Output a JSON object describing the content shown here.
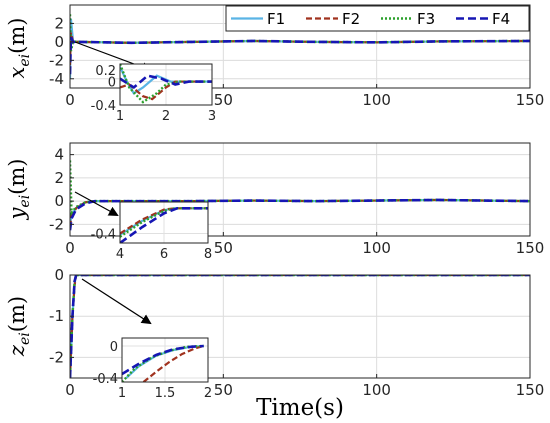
{
  "chart_data": [
    {
      "type": "line",
      "ylabel": "x_ei(m)",
      "xlabel": "",
      "xlim": [
        0,
        150
      ],
      "ylim": [
        -5,
        4
      ],
      "xticks": [
        0,
        50,
        100,
        150
      ],
      "yticks": [
        -4,
        -2,
        0,
        2
      ],
      "grid": true,
      "legend_position": "top-right",
      "legend": [
        "F1",
        "F2",
        "F3",
        "F4"
      ],
      "series": [
        {
          "name": "F1",
          "color": "#5ab4e5",
          "dash": "solid",
          "x": [
            0,
            0.3,
            1,
            3,
            20,
            40,
            60,
            80,
            100,
            120,
            150
          ],
          "y": [
            -4.0,
            2.5,
            0.05,
            0.0,
            -0.1,
            0.0,
            0.1,
            0.0,
            -0.05,
            0.05,
            0.1
          ]
        },
        {
          "name": "F2",
          "color": "#a0321e",
          "dash": "6,3",
          "x": [
            0,
            0.3,
            1,
            3,
            20,
            40,
            60,
            80,
            100,
            120,
            150
          ],
          "y": [
            -2.5,
            1.0,
            0.0,
            0.0,
            -0.1,
            0.0,
            0.1,
            0.0,
            -0.05,
            0.05,
            0.1
          ]
        },
        {
          "name": "F3",
          "color": "#2ca02c",
          "dash": "2,2",
          "x": [
            0,
            0.3,
            1,
            3,
            20,
            40,
            60,
            80,
            100,
            120,
            150
          ],
          "y": [
            3.0,
            -1.0,
            0.05,
            0.0,
            -0.1,
            0.0,
            0.1,
            0.0,
            -0.05,
            0.05,
            0.1
          ]
        },
        {
          "name": "F4",
          "color": "#1616b4",
          "dash": "8,4",
          "x": [
            0,
            0.3,
            1,
            3,
            20,
            40,
            60,
            80,
            100,
            120,
            150
          ],
          "y": [
            -3.5,
            0.5,
            0.0,
            0.0,
            -0.1,
            0.0,
            0.1,
            0.0,
            -0.05,
            0.05,
            0.1
          ]
        }
      ],
      "inset": {
        "xlim": [
          1,
          3
        ],
        "ylim": [
          -0.4,
          0.3
        ],
        "xticks": [
          1,
          2,
          3
        ],
        "yticks": [
          -0.4,
          0,
          0.2
        ],
        "yticklabels": [
          "-0.4",
          "0",
          "0.2"
        ],
        "series": [
          {
            "name": "F1",
            "x": [
              1.0,
              1.15,
              1.3,
              1.5,
              1.8,
              2.1,
              2.5,
              3.0
            ],
            "y": [
              0.25,
              0.0,
              -0.2,
              -0.1,
              0.1,
              0.0,
              0.0,
              0.0
            ]
          },
          {
            "name": "F2",
            "x": [
              1.0,
              1.2,
              1.5,
              1.7,
              2.0,
              2.2,
              2.5,
              3.0
            ],
            "y": [
              -0.1,
              -0.05,
              -0.25,
              -0.3,
              -0.1,
              0.0,
              0.0,
              0.0
            ]
          },
          {
            "name": "F3",
            "x": [
              1.0,
              1.2,
              1.5,
              1.8,
              2.0,
              2.3,
              2.6,
              3.0
            ],
            "y": [
              0.3,
              -0.1,
              -0.35,
              -0.2,
              -0.05,
              0.0,
              0.0,
              0.0
            ]
          },
          {
            "name": "F4",
            "x": [
              1.0,
              1.3,
              1.6,
              1.9,
              2.2,
              2.5,
              3.0
            ],
            "y": [
              0.05,
              -0.1,
              0.1,
              0.05,
              -0.05,
              0.0,
              0.0
            ]
          }
        ]
      }
    },
    {
      "type": "line",
      "ylabel": "y_ei(m)",
      "xlabel": "",
      "xlim": [
        0,
        150
      ],
      "ylim": [
        -3,
        5
      ],
      "xticks": [
        0,
        50,
        100,
        150
      ],
      "yticks": [
        -2,
        0,
        2,
        4
      ],
      "grid": true,
      "series": [
        {
          "name": "F1",
          "x": [
            0,
            0.5,
            2,
            5,
            8,
            20,
            40,
            60,
            80,
            100,
            120,
            150
          ],
          "y": [
            -2.0,
            -1.2,
            -0.6,
            -0.1,
            0.0,
            0.0,
            0.0,
            0.05,
            0.0,
            0.05,
            0.1,
            0.0
          ]
        },
        {
          "name": "F2",
          "x": [
            0,
            0.5,
            2,
            5,
            8,
            20,
            40,
            60,
            80,
            100,
            120,
            150
          ],
          "y": [
            -2.2,
            -1.3,
            -0.6,
            -0.1,
            0.0,
            0.0,
            0.0,
            0.05,
            0.0,
            0.05,
            0.1,
            0.0
          ]
        },
        {
          "name": "F3",
          "x": [
            0,
            0.5,
            2,
            5,
            8,
            20,
            40,
            60,
            80,
            100,
            120,
            150
          ],
          "y": [
            3.5,
            -1.0,
            -0.5,
            -0.1,
            0.0,
            0.0,
            0.0,
            0.05,
            0.0,
            0.05,
            0.1,
            0.0
          ]
        },
        {
          "name": "F4",
          "x": [
            0,
            0.5,
            2,
            5,
            8,
            20,
            40,
            60,
            80,
            100,
            120,
            150
          ],
          "y": [
            -2.5,
            -1.5,
            -0.7,
            -0.2,
            0.0,
            0.0,
            0.0,
            0.05,
            0.0,
            0.05,
            0.1,
            0.0
          ]
        }
      ],
      "inset": {
        "xlim": [
          4,
          8
        ],
        "ylim": [
          -0.55,
          0.1
        ],
        "xticks": [
          4,
          6,
          8
        ],
        "yticks": [
          -0.4
        ],
        "yticklabels": [
          "-0.4"
        ],
        "series": [
          {
            "name": "F1",
            "x": [
              4.0,
              5.0,
              6.0,
              6.5,
              8.0
            ],
            "y": [
              -0.42,
              -0.2,
              -0.03,
              0.0,
              0.0
            ]
          },
          {
            "name": "F2",
            "x": [
              4.0,
              5.0,
              6.0,
              6.5,
              8.0
            ],
            "y": [
              -0.4,
              -0.18,
              -0.02,
              0.0,
              0.0
            ]
          },
          {
            "name": "F3",
            "x": [
              4.0,
              5.0,
              6.0,
              6.5,
              8.0
            ],
            "y": [
              -0.45,
              -0.22,
              -0.04,
              0.0,
              0.0
            ]
          },
          {
            "name": "F4",
            "x": [
              4.0,
              5.0,
              6.0,
              6.6,
              8.0
            ],
            "y": [
              -0.55,
              -0.3,
              -0.08,
              0.0,
              0.0
            ]
          }
        ]
      }
    },
    {
      "type": "line",
      "ylabel": "z_ei(m)",
      "xlabel": "Time(s)",
      "xlim": [
        0,
        150
      ],
      "ylim": [
        -2.5,
        0
      ],
      "xticks": [
        0,
        50,
        100,
        150
      ],
      "yticks": [
        -2,
        -1,
        0
      ],
      "grid": true,
      "series": [
        {
          "name": "F1",
          "x": [
            0,
            0.8,
            1.5,
            2.0,
            3.0,
            150
          ],
          "y": [
            -2.5,
            -1.0,
            -0.2,
            0.0,
            0.0,
            0.0
          ]
        },
        {
          "name": "F2",
          "x": [
            0,
            0.8,
            1.5,
            2.0,
            3.0,
            150
          ],
          "y": [
            -2.5,
            -1.0,
            -0.25,
            0.0,
            0.0,
            0.0
          ]
        },
        {
          "name": "F3",
          "x": [
            0,
            0.8,
            1.5,
            2.0,
            3.0,
            150
          ],
          "y": [
            -2.5,
            -1.0,
            -0.15,
            0.0,
            0.0,
            0.0
          ]
        },
        {
          "name": "F4",
          "x": [
            0,
            0.8,
            1.5,
            2.0,
            3.0,
            150
          ],
          "y": [
            -2.5,
            -1.0,
            -0.15,
            0.0,
            0.0,
            0.0
          ]
        }
      ],
      "inset": {
        "xlim": [
          1,
          2
        ],
        "ylim": [
          -0.45,
          0.1
        ],
        "xticks": [
          1,
          1.5,
          2
        ],
        "xticklabels": [
          "1",
          "1.5",
          "2"
        ],
        "yticks": [
          -0.4,
          0
        ],
        "yticklabels": [
          "-0.4",
          "0"
        ],
        "series": [
          {
            "name": "F1",
            "x": [
              1.05,
              1.2,
              1.4,
              1.6,
              1.8,
              1.95
            ],
            "y": [
              -0.4,
              -0.25,
              -0.12,
              -0.05,
              -0.01,
              0.0
            ]
          },
          {
            "name": "F2",
            "x": [
              1.25,
              1.4,
              1.55,
              1.7,
              1.85,
              1.95
            ],
            "y": [
              -0.45,
              -0.32,
              -0.2,
              -0.1,
              -0.03,
              0.0
            ]
          },
          {
            "name": "F3",
            "x": [
              1.0,
              1.15,
              1.35,
              1.55,
              1.75,
              1.95
            ],
            "y": [
              -0.45,
              -0.28,
              -0.14,
              -0.06,
              -0.01,
              0.0
            ]
          },
          {
            "name": "F4",
            "x": [
              1.0,
              1.2,
              1.4,
              1.6,
              1.8,
              1.95
            ],
            "y": [
              -0.35,
              -0.22,
              -0.11,
              -0.04,
              -0.01,
              0.0
            ]
          }
        ]
      }
    }
  ],
  "ylabel_parts": [
    {
      "base": "x",
      "sub": "ei",
      "unit": "(m)"
    },
    {
      "base": "y",
      "sub": "ei",
      "unit": "(m)"
    },
    {
      "base": "z",
      "sub": "ei",
      "unit": "(m)"
    }
  ]
}
